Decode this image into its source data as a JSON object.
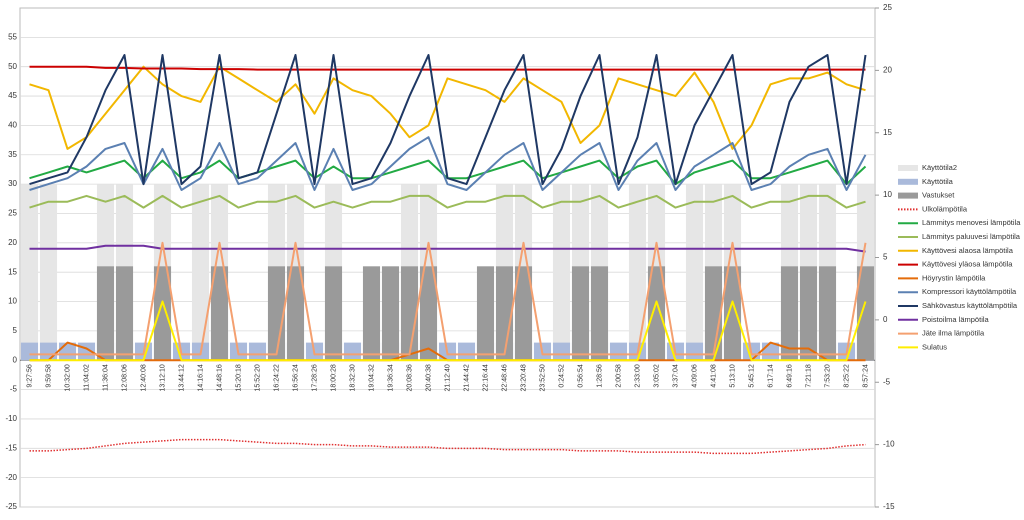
{
  "chart_data": {
    "type": "line",
    "categories": [
      "9:27:56",
      "9:59:58",
      "10:32:00",
      "11:04:02",
      "11:36:04",
      "12:08:06",
      "12:40:08",
      "13:12:10",
      "13:44:12",
      "14:16:14",
      "14:48:16",
      "15:20:18",
      "15:52:20",
      "16:24:22",
      "16:56:24",
      "17:28:26",
      "18:00:28",
      "18:32:30",
      "19:04:32",
      "19:36:34",
      "20:08:36",
      "20:40:38",
      "21:12:40",
      "21:44:42",
      "22:16:44",
      "22:48:46",
      "23:20:48",
      "23:52:50",
      "0:24:52",
      "0:56:54",
      "1:28:56",
      "2:00:58",
      "2:33:00",
      "3:05:02",
      "3:37:04",
      "4:09:06",
      "4:41:08",
      "5:13:10",
      "5:45:12",
      "6:17:14",
      "6:49:16",
      "7:21:18",
      "7:53:20",
      "8:25:22",
      "8:57:24"
    ],
    "ylim": [
      -25,
      60
    ],
    "yticks": [
      -25,
      -20,
      -15,
      -10,
      -5,
      0,
      5,
      10,
      15,
      20,
      25,
      30,
      35,
      40,
      45,
      50,
      55
    ],
    "y2lim": [
      -15,
      25
    ],
    "y2ticks": [
      -15,
      -10,
      -5,
      0,
      5,
      10,
      15,
      20,
      25
    ],
    "grid": true,
    "series": [
      {
        "name": "Käyttötila2",
        "color": "#e6e6e6",
        "style": "bar",
        "values": [
          30,
          30,
          0,
          0,
          30,
          30,
          0,
          30,
          0,
          30,
          30,
          0,
          0,
          30,
          30,
          0,
          30,
          0,
          0,
          0,
          30,
          30,
          0,
          0,
          0,
          30,
          30,
          0,
          30,
          30,
          30,
          0,
          30,
          30,
          0,
          30,
          30,
          30,
          0,
          0,
          30,
          30,
          30,
          0,
          30
        ]
      },
      {
        "name": "Käyttötila",
        "color": "#aabadb",
        "style": "bar",
        "values": [
          3,
          3,
          3,
          3,
          3,
          3,
          3,
          3,
          3,
          3,
          3,
          3,
          3,
          3,
          3,
          3,
          3,
          3,
          3,
          3,
          3,
          3,
          3,
          3,
          3,
          3,
          3,
          3,
          3,
          3,
          3,
          3,
          3,
          3,
          3,
          3,
          3,
          3,
          3,
          3,
          3,
          3,
          3,
          3,
          3
        ]
      },
      {
        "name": "Vastukset",
        "color": "#9a9a9a",
        "style": "bar",
        "values": [
          0,
          0,
          0,
          0,
          16,
          16,
          0,
          16,
          0,
          0,
          16,
          0,
          0,
          16,
          16,
          0,
          16,
          0,
          16,
          16,
          16,
          16,
          0,
          0,
          16,
          16,
          16,
          0,
          0,
          16,
          16,
          0,
          0,
          16,
          0,
          0,
          16,
          16,
          0,
          0,
          16,
          16,
          16,
          0,
          16
        ]
      },
      {
        "name": "Ulkolämpötila",
        "color": "#e03030",
        "style": "dotted",
        "axis": "y2",
        "values": [
          -10.5,
          -10.5,
          -10.4,
          -10.3,
          -10.1,
          -9.9,
          -9.8,
          -9.7,
          -9.6,
          -9.6,
          -9.6,
          -9.7,
          -9.8,
          -9.9,
          -9.9,
          -10,
          -10,
          -10.1,
          -10.1,
          -10.2,
          -10.2,
          -10.2,
          -10.3,
          -10.3,
          -10.3,
          -10.4,
          -10.4,
          -10.4,
          -10.4,
          -10.5,
          -10.5,
          -10.5,
          -10.6,
          -10.6,
          -10.6,
          -10.6,
          -10.7,
          -10.7,
          -10.7,
          -10.6,
          -10.5,
          -10.4,
          -10.3,
          -10.1,
          -10
        ]
      },
      {
        "name": "Lämmitys menovesi lämpötila",
        "color": "#22aa44",
        "style": "line",
        "values": [
          31,
          32,
          33,
          32,
          33,
          34,
          31,
          34,
          31,
          32,
          34,
          31,
          32,
          33,
          34,
          31,
          33,
          31,
          31,
          32,
          33,
          34,
          31,
          31,
          32,
          33,
          34,
          31,
          32,
          33,
          34,
          31,
          33,
          34,
          30,
          32,
          33,
          34,
          31,
          31,
          32,
          33,
          34,
          30,
          33
        ]
      },
      {
        "name": "Lämmitys paluuvesi lämpötila",
        "color": "#9bbb59",
        "style": "line",
        "values": [
          26,
          27,
          27,
          28,
          27,
          28,
          26,
          28,
          26,
          27,
          28,
          26,
          27,
          27,
          28,
          26,
          27,
          26,
          27,
          27,
          28,
          28,
          26,
          27,
          27,
          28,
          28,
          26,
          27,
          27,
          28,
          26,
          27,
          28,
          26,
          27,
          27,
          28,
          26,
          27,
          27,
          28,
          28,
          26,
          27
        ]
      },
      {
        "name": "Käyttövesi alaosa lämpötila",
        "color": "#f2b700",
        "style": "line",
        "values": [
          47,
          46,
          36,
          38,
          42,
          46,
          50,
          47,
          45,
          44,
          50,
          48,
          46,
          44,
          47,
          42,
          48,
          46,
          45,
          42,
          38,
          40,
          48,
          47,
          46,
          44,
          48,
          46,
          44,
          37,
          40,
          48,
          47,
          46,
          45,
          49,
          44,
          36,
          40,
          47,
          48,
          48,
          49,
          47,
          46
        ]
      },
      {
        "name": "Käyttövesi yläosa lämpötila",
        "color": "#cc0000",
        "style": "line",
        "values": [
          50,
          50,
          50,
          50,
          49.8,
          49.8,
          49.7,
          49.7,
          49.7,
          49.6,
          49.6,
          49.6,
          49.5,
          49.5,
          49.5,
          49.5,
          49.5,
          49.5,
          49.5,
          49.5,
          49.5,
          49.5,
          49.5,
          49.5,
          49.5,
          49.5,
          49.5,
          49.5,
          49.5,
          49.5,
          49.5,
          49.5,
          49.5,
          49.5,
          49.5,
          49.5,
          49.5,
          49.5,
          49.5,
          49.5,
          49.5,
          49.5,
          49.5,
          49.5,
          49.5
        ]
      },
      {
        "name": "Höyrystin lämpötila",
        "color": "#e46c0a",
        "style": "line",
        "values": [
          0,
          0,
          3,
          2,
          0,
          0,
          0,
          0,
          0,
          0,
          0,
          0,
          0,
          0,
          0,
          0,
          0,
          0,
          0,
          0,
          1,
          2,
          0,
          0,
          0,
          0,
          0,
          0,
          0,
          0,
          0,
          0,
          0,
          0,
          0,
          0,
          0,
          0,
          0,
          3,
          2,
          2,
          0,
          0,
          0
        ]
      },
      {
        "name": "Kompressori käyttölämpötila",
        "color": "#5b80b2",
        "style": "line",
        "values": [
          29,
          30,
          31,
          33,
          36,
          37,
          30,
          36,
          29,
          31,
          37,
          30,
          31,
          34,
          37,
          29,
          36,
          29,
          30,
          33,
          36,
          38,
          30,
          29,
          32,
          35,
          37,
          29,
          32,
          35,
          37,
          29,
          34,
          37,
          29,
          33,
          35,
          37,
          29,
          30,
          33,
          35,
          36,
          29,
          35
        ]
      },
      {
        "name": "Sähkövastus käyttölämpötila",
        "color": "#1f3864",
        "style": "line",
        "values": [
          30,
          31,
          32,
          38,
          46,
          52,
          30,
          52,
          30,
          33,
          52,
          31,
          32,
          42,
          52,
          30,
          52,
          30,
          31,
          37,
          45,
          52,
          31,
          30,
          38,
          46,
          52,
          30,
          36,
          45,
          52,
          30,
          38,
          52,
          30,
          40,
          46,
          52,
          30,
          32,
          44,
          50,
          52,
          30,
          52
        ]
      },
      {
        "name": "Poistoilma lämpötila",
        "color": "#7030a0",
        "style": "line",
        "values": [
          19,
          19,
          19,
          19,
          19.5,
          19.5,
          19.5,
          19,
          19,
          19,
          19,
          19,
          19,
          19,
          19,
          19,
          19,
          19,
          19,
          19,
          19,
          19,
          19,
          19,
          19,
          19,
          19,
          19,
          19,
          19,
          19,
          19,
          19,
          19,
          19,
          19,
          19,
          19,
          19,
          19,
          19,
          19,
          19,
          19,
          18.5
        ]
      },
      {
        "name": "Jäte ilma lämpötila",
        "color": "#f4a070",
        "style": "line",
        "values": [
          1,
          1,
          1,
          1,
          1,
          1,
          1,
          20,
          1,
          1,
          20,
          1,
          1,
          1,
          20,
          1,
          1,
          1,
          1,
          1,
          1,
          20,
          1,
          1,
          1,
          1,
          20,
          1,
          1,
          1,
          1,
          1,
          1,
          20,
          1,
          1,
          1,
          20,
          1,
          1,
          1,
          1,
          1,
          1,
          20
        ]
      },
      {
        "name": "Sulatus",
        "color": "#ffee00",
        "style": "line",
        "values": [
          0,
          0,
          0,
          0,
          0,
          0,
          0,
          10,
          0,
          0,
          0,
          0,
          0,
          0,
          0,
          0,
          0,
          0,
          0,
          0,
          0,
          0,
          0,
          0,
          0,
          0,
          0,
          0,
          0,
          0,
          0,
          0,
          0,
          10,
          0,
          0,
          0,
          10,
          0,
          0,
          0,
          0,
          0,
          0,
          10
        ]
      }
    ]
  }
}
